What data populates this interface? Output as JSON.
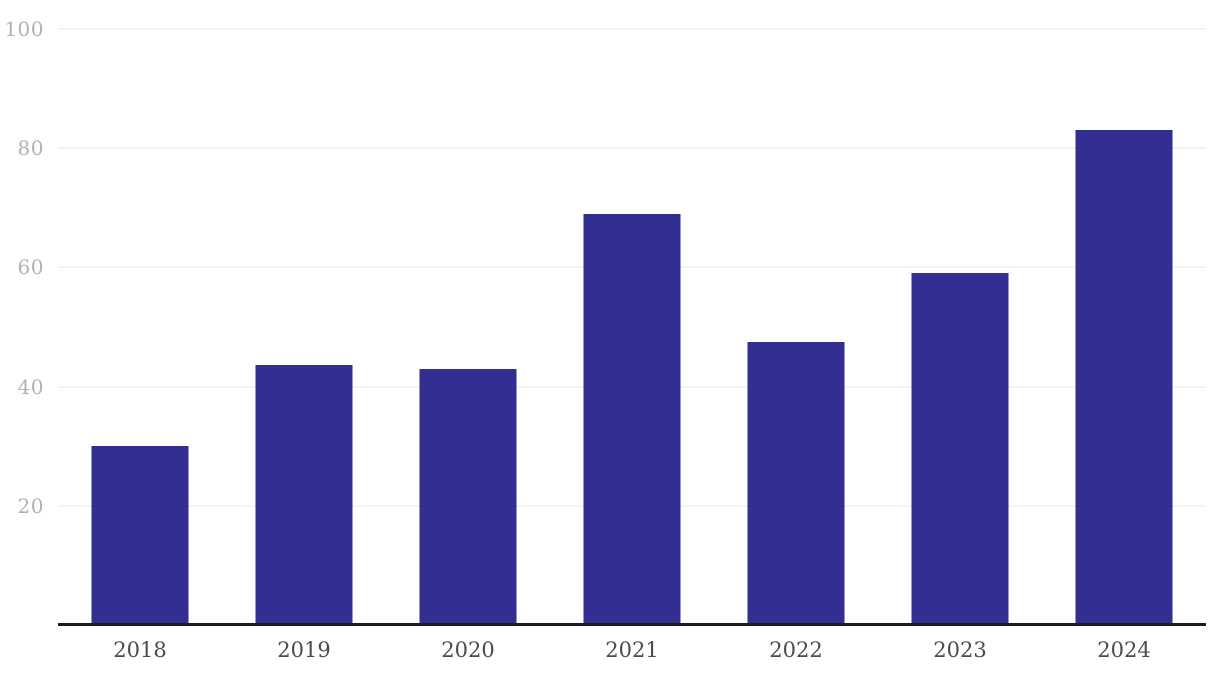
{
  "chart_data": {
    "type": "bar",
    "title": "",
    "xlabel": "",
    "ylabel": "",
    "categories": [
      "2018",
      "2019",
      "2020",
      "2021",
      "2022",
      "2023",
      "2024"
    ],
    "values": [
      30,
      43.7,
      43,
      69,
      47.5,
      59,
      83
    ],
    "ylim": [
      0,
      100
    ],
    "yticks": [
      20,
      40,
      60,
      80,
      100
    ],
    "grid": true,
    "legend_position": "none",
    "colors": {
      "bar": "#322E92",
      "gridline": "#e9e9ed",
      "axis_line": "#1c1c1c",
      "y_tick_text": "#b2b2b4",
      "x_tick_text": "#4c4c50",
      "background": "#ffffff"
    }
  }
}
